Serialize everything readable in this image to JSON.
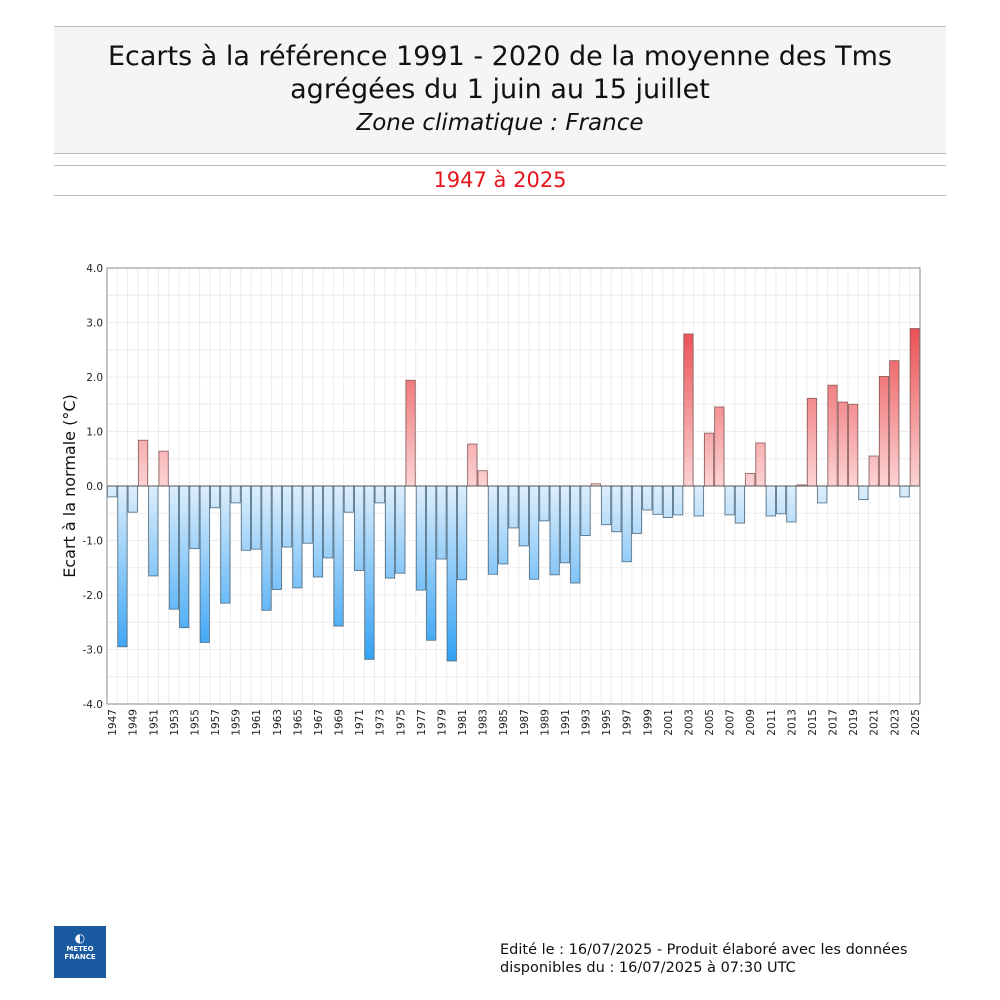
{
  "header": {
    "title_line1": "Ecarts à la référence 1991 - 2020 de la moyenne des Tms",
    "title_line2": "agrégées du 1 juin au 15 juillet",
    "subtitle": "Zone climatique : France",
    "period": "1947 à 2025"
  },
  "footer": {
    "line1": "Edité le : 16/07/2025 - Produit élaboré avec les données",
    "line2": "disponibles du : 16/07/2025 à 07:30 UTC",
    "logo_text": "METEO FRANCE"
  },
  "colors": {
    "positive": "#e8383d",
    "negative": "#2a9df4",
    "positive_light": "#fcd4d4",
    "negative_light": "#ddeefc"
  },
  "chart_data": {
    "type": "bar",
    "ylabel": "Ecart à la normale (°C)",
    "ylim": [
      -4,
      4
    ],
    "yticks": [
      "4.0",
      "3.0",
      "2.0",
      "1.0",
      "0.0",
      "-1.0",
      "-2.0",
      "-3.0",
      "-4.0"
    ],
    "grid": true,
    "x_start": 1947,
    "values": [
      -0.2,
      -2.95,
      -0.48,
      0.84,
      -1.65,
      0.64,
      -2.26,
      -2.6,
      -1.15,
      -2.87,
      -0.4,
      -2.15,
      -0.31,
      -1.18,
      -1.16,
      -2.28,
      -1.9,
      -1.12,
      -1.87,
      -1.05,
      -1.67,
      -1.32,
      -2.57,
      -0.48,
      -1.55,
      -3.18,
      -0.31,
      -1.69,
      -1.6,
      1.94,
      -1.91,
      -2.83,
      -1.34,
      -3.21,
      -1.72,
      0.77,
      0.28,
      -1.62,
      -1.43,
      -0.77,
      -1.1,
      -1.71,
      -0.64,
      -1.63,
      -1.41,
      -1.78,
      -0.91,
      0.04,
      -0.71,
      -0.84,
      -1.39,
      -0.87,
      -0.44,
      -0.52,
      -0.58,
      -0.53,
      2.79,
      -0.55,
      0.97,
      1.45,
      -0.53,
      -0.68,
      0.23,
      0.79,
      -0.55,
      -0.51,
      -0.66,
      0.02,
      1.61,
      -0.31,
      1.85,
      1.54,
      1.5,
      -0.25,
      0.55,
      2.01,
      2.3,
      -0.2,
      2.89
    ]
  }
}
